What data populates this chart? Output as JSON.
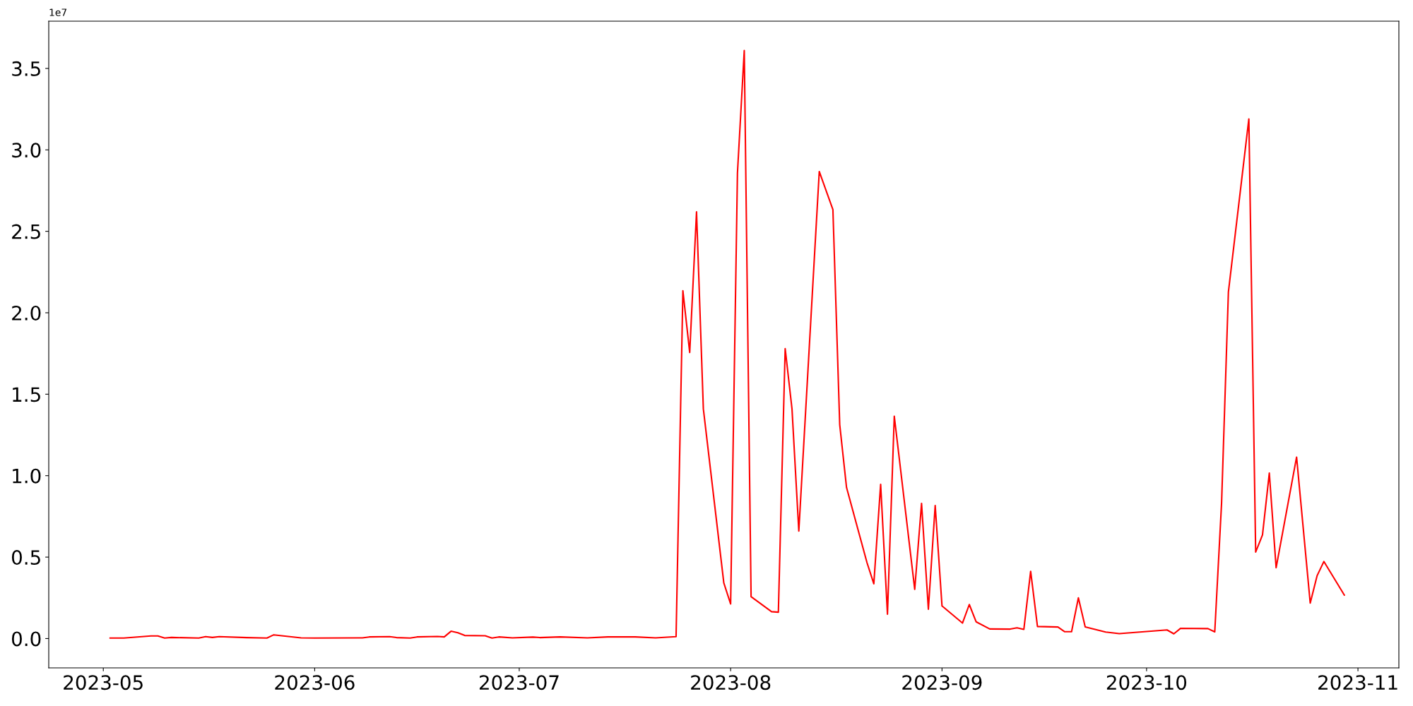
{
  "chart_data": {
    "type": "line",
    "x": [
      "2023-05-02",
      "2023-05-04",
      "2023-05-08",
      "2023-05-09",
      "2023-05-10",
      "2023-05-11",
      "2023-05-15",
      "2023-05-16",
      "2023-05-17",
      "2023-05-18",
      "2023-05-22",
      "2023-05-25",
      "2023-05-26",
      "2023-05-30",
      "2023-06-01",
      "2023-06-08",
      "2023-06-09",
      "2023-06-12",
      "2023-06-13",
      "2023-06-15",
      "2023-06-16",
      "2023-06-19",
      "2023-06-20",
      "2023-06-21",
      "2023-06-22",
      "2023-06-23",
      "2023-06-26",
      "2023-06-27",
      "2023-06-28",
      "2023-06-30",
      "2023-07-03",
      "2023-07-04",
      "2023-07-07",
      "2023-07-11",
      "2023-07-14",
      "2023-07-18",
      "2023-07-21",
      "2023-07-24",
      "2023-07-25",
      "2023-07-26",
      "2023-07-27",
      "2023-07-28",
      "2023-07-31",
      "2023-08-01",
      "2023-08-02",
      "2023-08-03",
      "2023-08-04",
      "2023-08-07",
      "2023-08-08",
      "2023-08-09",
      "2023-08-10",
      "2023-08-11",
      "2023-08-14",
      "2023-08-16",
      "2023-08-17",
      "2023-08-18",
      "2023-08-21",
      "2023-08-22",
      "2023-08-23",
      "2023-08-24",
      "2023-08-25",
      "2023-08-28",
      "2023-08-29",
      "2023-08-30",
      "2023-08-31",
      "2023-09-01",
      "2023-09-04",
      "2023-09-05",
      "2023-09-06",
      "2023-09-08",
      "2023-09-11",
      "2023-09-12",
      "2023-09-13",
      "2023-09-14",
      "2023-09-15",
      "2023-09-18",
      "2023-09-19",
      "2023-09-20",
      "2023-09-21",
      "2023-09-22",
      "2023-09-25",
      "2023-09-27",
      "2023-10-04",
      "2023-10-05",
      "2023-10-06",
      "2023-10-10",
      "2023-10-11",
      "2023-10-12",
      "2023-10-13",
      "2023-10-16",
      "2023-10-17",
      "2023-10-18",
      "2023-10-19",
      "2023-10-20",
      "2023-10-23",
      "2023-10-25",
      "2023-10-26",
      "2023-10-27",
      "2023-10-30"
    ],
    "series": [
      {
        "color": "#ff0000",
        "values": [
          0.003,
          0.003,
          0.016,
          0.016,
          0.003,
          0.007,
          0.003,
          0.012,
          0.007,
          0.012,
          0.006,
          0.003,
          0.023,
          0.004,
          0.003,
          0.004,
          0.01,
          0.012,
          0.006,
          0.003,
          0.01,
          0.013,
          0.01,
          0.045,
          0.036,
          0.019,
          0.017,
          0.003,
          0.01,
          0.004,
          0.009,
          0.006,
          0.01,
          0.004,
          0.01,
          0.01,
          0.004,
          0.012,
          2.135,
          1.756,
          2.62,
          1.41,
          0.342,
          0.212,
          2.857,
          3.61,
          0.257,
          0.165,
          0.162,
          1.78,
          1.41,
          0.66,
          2.867,
          2.633,
          1.313,
          0.927,
          0.466,
          0.336,
          0.947,
          0.15,
          1.365,
          0.302,
          0.83,
          0.18,
          0.817,
          0.2,
          0.095,
          0.209,
          0.103,
          0.059,
          0.058,
          0.066,
          0.056,
          0.413,
          0.074,
          0.071,
          0.042,
          0.042,
          0.25,
          0.071,
          0.04,
          0.03,
          0.053,
          0.029,
          0.063,
          0.061,
          0.041,
          0.832,
          2.127,
          3.19,
          0.531,
          0.636,
          1.016,
          0.435,
          1.114,
          0.218,
          0.385,
          0.473,
          0.267
        ]
      }
    ],
    "xlim": [
      "2023-04-23",
      "2023-11-07"
    ],
    "xticks": [
      {
        "value": "2023-05-01",
        "label": "2023-05"
      },
      {
        "value": "2023-06-01",
        "label": "2023-06"
      },
      {
        "value": "2023-07-01",
        "label": "2023-07"
      },
      {
        "value": "2023-08-01",
        "label": "2023-08"
      },
      {
        "value": "2023-09-01",
        "label": "2023-09"
      },
      {
        "value": "2023-10-01",
        "label": "2023-10"
      },
      {
        "value": "2023-11-01",
        "label": "2023-11"
      }
    ],
    "ylim": [
      -0.18,
      3.79
    ],
    "yticks": [
      {
        "value": 0,
        "label": "0.0"
      },
      0.5,
      {
        "value": 1,
        "label": "1.0"
      },
      1.5,
      {
        "value": 2,
        "label": "2.0"
      },
      2.5,
      {
        "value": 3,
        "label": "3.0"
      },
      3.5
    ],
    "annotations": [
      "1e7"
    ],
    "grid": false,
    "legend": false,
    "marker": "none",
    "line_style": "solid"
  }
}
